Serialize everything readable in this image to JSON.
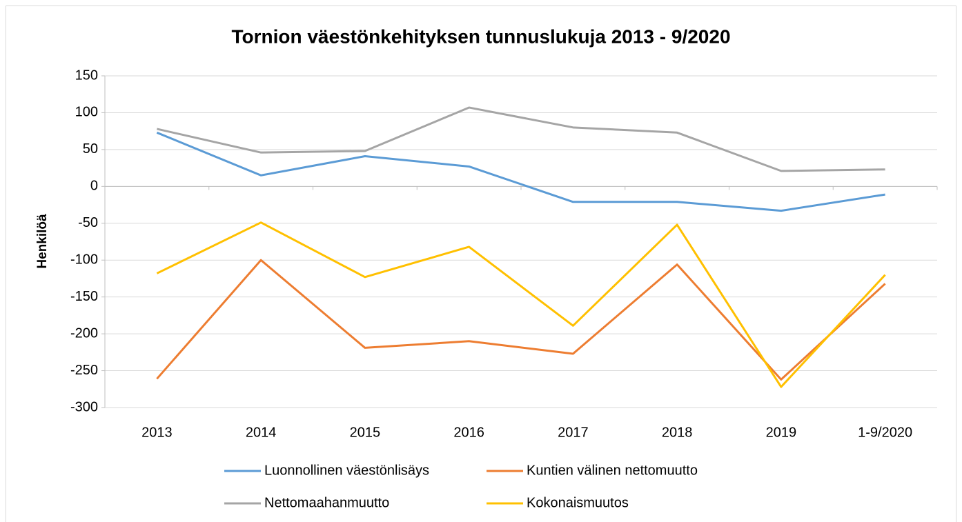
{
  "chart_data": {
    "type": "line",
    "title": "Tornion väestönkehityksen tunnuslukuja 2013 - 9/2020",
    "y_label": "Henkilöä",
    "categories": [
      "2013",
      "2014",
      "2015",
      "2016",
      "2017",
      "2018",
      "2019",
      "1-9/2020"
    ],
    "series": [
      {
        "name": "Luonnollinen väestönlisäys",
        "color": "#5b9bd5",
        "values": [
          73,
          15,
          41,
          27,
          -21,
          -21,
          -33,
          -11
        ]
      },
      {
        "name": "Kuntien välinen nettomuutto",
        "color": "#ed7d31",
        "values": [
          -261,
          -100,
          -219,
          -210,
          -227,
          -106,
          -262,
          -132
        ]
      },
      {
        "name": "Nettomaahanmuutto",
        "color": "#a5a5a5",
        "values": [
          78,
          46,
          48,
          107,
          80,
          73,
          21,
          23
        ]
      },
      {
        "name": "Kokonaismuutos",
        "color": "#ffc000",
        "values": [
          -118,
          -49,
          -123,
          -82,
          -189,
          -52,
          -272,
          -120
        ]
      }
    ],
    "ylim": [
      -300,
      150
    ],
    "yticks": [
      -300,
      -250,
      -200,
      -150,
      -100,
      -50,
      0,
      50,
      100,
      150
    ],
    "grid": true
  }
}
